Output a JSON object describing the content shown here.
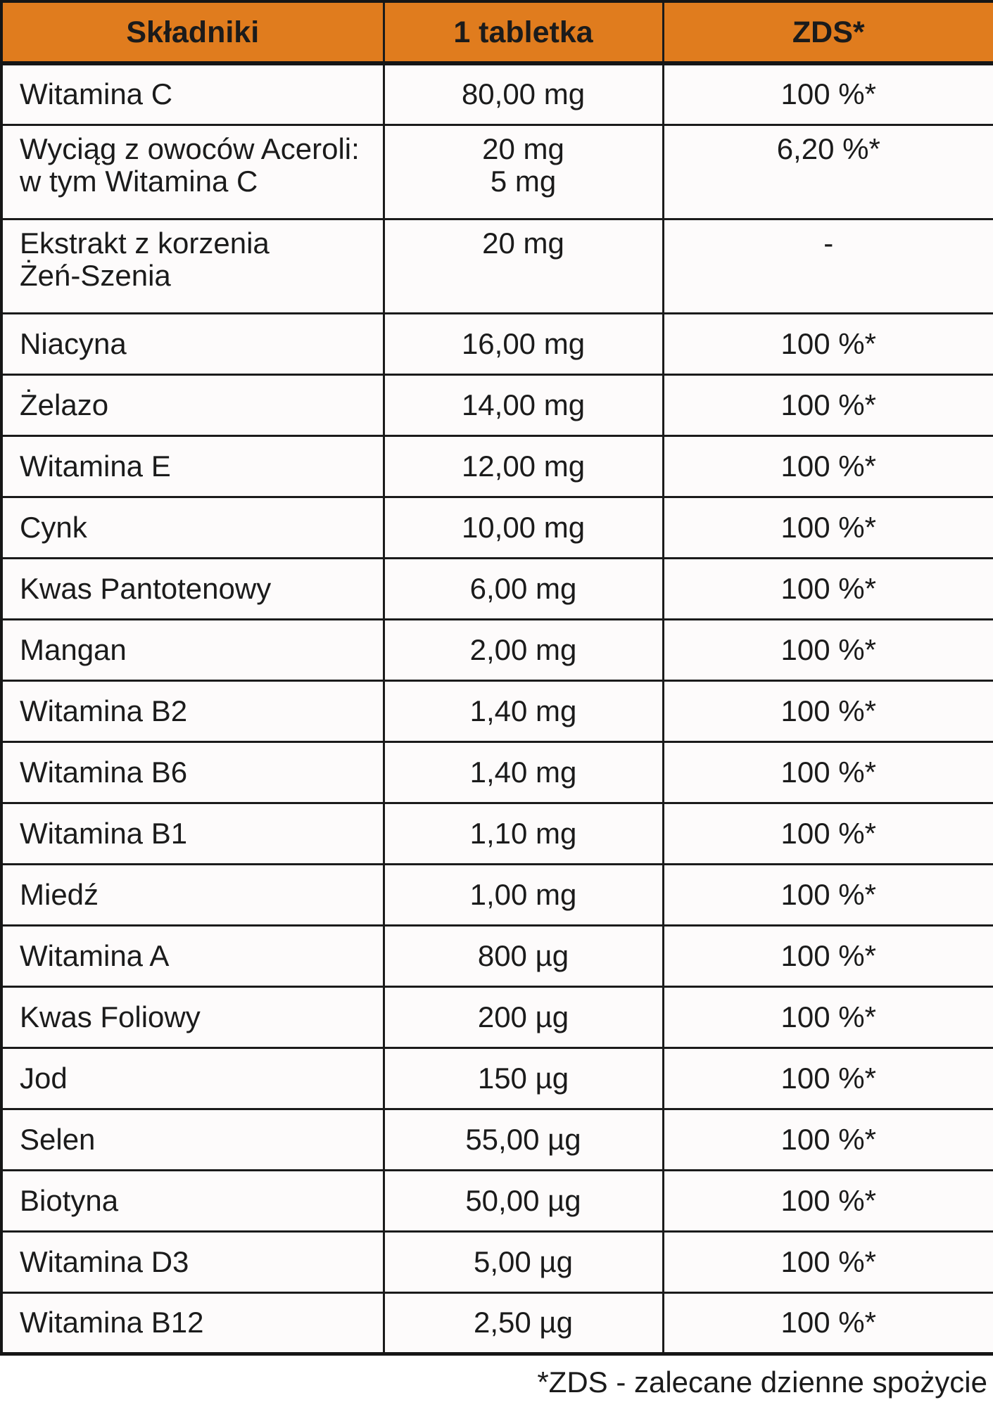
{
  "colors": {
    "header_bg": "#E07C1E",
    "border": "#1B1B1B",
    "text": "#1B1B1B",
    "row_bg": "#FDFBFB"
  },
  "table": {
    "columns": [
      "Składniki",
      "1 tabletka",
      "ZDS*"
    ],
    "rows": [
      {
        "name": "Witamina C",
        "amount": "80,00 mg",
        "zds": "100 %*"
      },
      {
        "name": "Wyciąg z owoców Aceroli:\nw tym Witamina C",
        "amount": "20 mg\n5 mg",
        "zds": "6,20 %*"
      },
      {
        "name": "Ekstrakt z korzenia\nŻeń-Szenia",
        "amount": "20 mg",
        "zds": "-"
      },
      {
        "name": "Niacyna",
        "amount": "16,00 mg",
        "zds": "100 %*"
      },
      {
        "name": "Żelazo",
        "amount": "14,00 mg",
        "zds": "100 %*"
      },
      {
        "name": "Witamina E",
        "amount": "12,00 mg",
        "zds": "100 %*"
      },
      {
        "name": "Cynk",
        "amount": "10,00 mg",
        "zds": "100 %*"
      },
      {
        "name": "Kwas Pantotenowy",
        "amount": "6,00 mg",
        "zds": "100 %*"
      },
      {
        "name": "Mangan",
        "amount": "2,00 mg",
        "zds": "100 %*"
      },
      {
        "name": "Witamina B2",
        "amount": "1,40 mg",
        "zds": "100 %*"
      },
      {
        "name": "Witamina B6",
        "amount": "1,40 mg",
        "zds": "100 %*"
      },
      {
        "name": "Witamina B1",
        "amount": "1,10 mg",
        "zds": "100 %*"
      },
      {
        "name": "Miedź",
        "amount": "1,00 mg",
        "zds": "100 %*"
      },
      {
        "name": "Witamina A",
        "amount": "800 µg",
        "zds": "100 %*"
      },
      {
        "name": "Kwas Foliowy",
        "amount": "200 µg",
        "zds": "100 %*"
      },
      {
        "name": "Jod",
        "amount": "150 µg",
        "zds": "100 %*"
      },
      {
        "name": "Selen",
        "amount": "55,00 µg",
        "zds": "100 %*"
      },
      {
        "name": "Biotyna",
        "amount": "50,00 µg",
        "zds": "100 %*"
      },
      {
        "name": "Witamina D3",
        "amount": "5,00 µg",
        "zds": "100 %*"
      },
      {
        "name": "Witamina B12",
        "amount": "2,50 µg",
        "zds": "100 %*"
      }
    ],
    "footnote": "*ZDS - zalecane dzienne spożycie"
  }
}
